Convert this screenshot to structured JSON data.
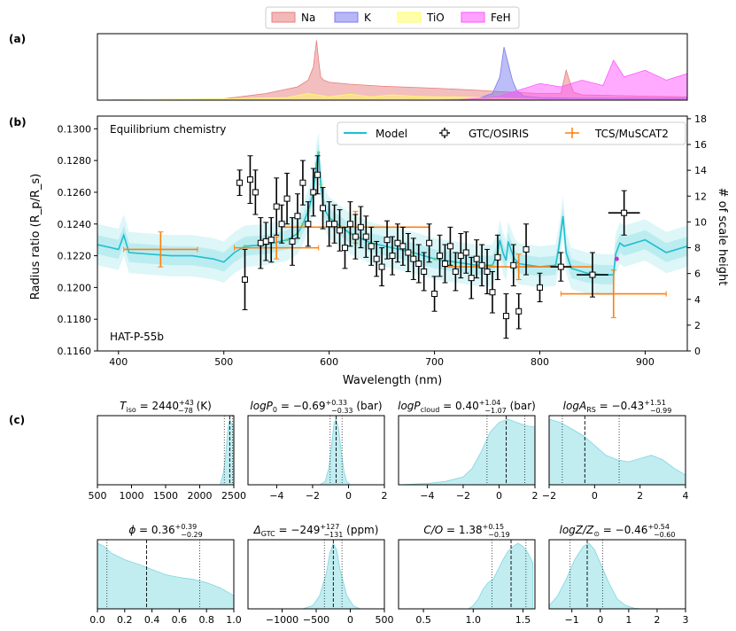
{
  "panel_labels": {
    "a": "(a)",
    "b": "(b)",
    "c": "(c)"
  },
  "colors": {
    "na": "#e87d7d",
    "k": "#7b7bf0",
    "tio": "#ffff66",
    "feh": "#ff55ff",
    "model": "#1fbfcf",
    "band": "#9fe4ea",
    "gtc": "#000000",
    "tcs": "#ff7f0e",
    "posterior": "#9fe4ea"
  },
  "chart_data": [
    {
      "id": "opacity",
      "type": "area",
      "legend": [
        {
          "key": "na",
          "label": "Na"
        },
        {
          "key": "k",
          "label": "K"
        },
        {
          "key": "tio",
          "label": "TiO"
        },
        {
          "key": "feh",
          "label": "FeH"
        }
      ],
      "xlim": [
        380,
        940
      ],
      "series": [
        {
          "key": "na",
          "x": [
            380,
            500,
            540,
            570,
            580,
            585,
            588,
            590,
            592,
            595,
            600,
            620,
            650,
            700,
            740,
            760,
            800,
            820,
            825,
            828,
            832,
            840,
            900,
            940
          ],
          "y": [
            0,
            0.02,
            0.1,
            0.2,
            0.3,
            0.5,
            0.9,
            0.6,
            0.35,
            0.3,
            0.27,
            0.24,
            0.21,
            0.18,
            0.15,
            0.13,
            0.1,
            0.1,
            0.45,
            0.3,
            0.12,
            0.08,
            0.06,
            0.05
          ]
        },
        {
          "key": "k",
          "x": [
            380,
            700,
            740,
            755,
            762,
            766,
            770,
            774,
            778,
            785,
            800,
            830,
            900,
            940
          ],
          "y": [
            0,
            0,
            0.02,
            0.1,
            0.35,
            0.8,
            0.55,
            0.3,
            0.15,
            0.06,
            0.04,
            0.03,
            0.03,
            0.03
          ]
        },
        {
          "key": "tio",
          "x": [
            380,
            500,
            560,
            580,
            600,
            620,
            640,
            660,
            680,
            700,
            720,
            740,
            760,
            780,
            800,
            940
          ],
          "y": [
            0,
            0.02,
            0.04,
            0.1,
            0.05,
            0.09,
            0.05,
            0.08,
            0.06,
            0.05,
            0.05,
            0.04,
            0.03,
            0.02,
            0.01,
            0
          ]
        },
        {
          "key": "feh",
          "x": [
            380,
            720,
            760,
            780,
            800,
            820,
            840,
            860,
            870,
            880,
            900,
            920,
            940
          ],
          "y": [
            0,
            0,
            0.05,
            0.15,
            0.25,
            0.2,
            0.3,
            0.22,
            0.6,
            0.35,
            0.45,
            0.3,
            0.4
          ]
        }
      ]
    },
    {
      "id": "transmission",
      "type": "line",
      "annotation": "Equilibrium chemistry",
      "target": "HAT-P-55b",
      "xlabel": "Wavelength (nm)",
      "ylabel": "Radius ratio (R_p/R_s)",
      "ylabel_right": "# of scale height",
      "xlim": [
        380,
        940
      ],
      "ylim": [
        0.116,
        0.1308
      ],
      "xticks": [
        400,
        500,
        600,
        700,
        800,
        900
      ],
      "yticks": [
        0.116,
        0.118,
        0.12,
        0.122,
        0.124,
        0.126,
        0.128,
        0.13
      ],
      "ytick_labels": [
        "0.1160",
        "0.1180",
        "0.1200",
        "0.1220",
        "0.1240",
        "0.1260",
        "0.1280",
        "0.1300"
      ],
      "right_ticks": [
        0,
        2,
        4,
        6,
        8,
        10,
        12,
        14,
        16,
        18
      ],
      "right_range": [
        0,
        18.2
      ],
      "legend": {
        "model": "Model",
        "gtc": "GTC/OSIRIS",
        "tcs": "TCS/MuSCAT2"
      },
      "model": {
        "x": [
          380,
          400,
          405,
          410,
          430,
          450,
          470,
          490,
          500,
          510,
          520,
          540,
          560,
          570,
          575,
          580,
          585,
          588,
          590,
          592,
          595,
          600,
          620,
          640,
          660,
          680,
          700,
          720,
          740,
          755,
          760,
          762,
          765,
          768,
          770,
          773,
          776,
          780,
          800,
          815,
          818,
          822,
          825,
          830,
          845,
          860,
          870,
          872,
          876,
          880,
          900,
          920,
          940
        ],
        "y": [
          0.1227,
          0.1224,
          0.1233,
          0.1222,
          0.1221,
          0.122,
          0.122,
          0.1218,
          0.1216,
          0.1222,
          0.1226,
          0.1227,
          0.123,
          0.1234,
          0.124,
          0.1248,
          0.126,
          0.1278,
          0.1285,
          0.1265,
          0.125,
          0.1244,
          0.1234,
          0.1228,
          0.1225,
          0.1222,
          0.1218,
          0.1216,
          0.1214,
          0.1214,
          0.1222,
          0.123,
          0.1222,
          0.1217,
          0.1229,
          0.1223,
          0.1218,
          0.1215,
          0.1213,
          0.1214,
          0.1225,
          0.1245,
          0.1222,
          0.1212,
          0.1209,
          0.1208,
          0.1208,
          0.1221,
          0.1228,
          0.1226,
          0.123,
          0.1222,
          0.1226
        ]
      },
      "gtc": [
        {
          "x": 515,
          "y": 0.1266,
          "e": 0.0008
        },
        {
          "x": 520,
          "y": 0.1205,
          "e": 0.0019
        },
        {
          "x": 525,
          "y": 0.1268,
          "e": 0.0015
        },
        {
          "x": 530,
          "y": 0.126,
          "e": 0.0014
        },
        {
          "x": 535,
          "y": 0.1228,
          "e": 0.0016
        },
        {
          "x": 540,
          "y": 0.1229,
          "e": 0.0012
        },
        {
          "x": 545,
          "y": 0.123,
          "e": 0.0014
        },
        {
          "x": 550,
          "y": 0.1251,
          "e": 0.0018
        },
        {
          "x": 555,
          "y": 0.124,
          "e": 0.0012
        },
        {
          "x": 560,
          "y": 0.1256,
          "e": 0.0016
        },
        {
          "x": 565,
          "y": 0.1229,
          "e": 0.0015
        },
        {
          "x": 570,
          "y": 0.1245,
          "e": 0.0014
        },
        {
          "x": 575,
          "y": 0.1266,
          "e": 0.0014
        },
        {
          "x": 580,
          "y": 0.124,
          "e": 0.0014
        },
        {
          "x": 585,
          "y": 0.126,
          "e": 0.0015
        },
        {
          "x": 589,
          "y": 0.1271,
          "e": 0.0012
        },
        {
          "x": 594,
          "y": 0.125,
          "e": 0.0013
        },
        {
          "x": 600,
          "y": 0.124,
          "e": 0.0014
        },
        {
          "x": 605,
          "y": 0.124,
          "e": 0.0012
        },
        {
          "x": 610,
          "y": 0.1236,
          "e": 0.0013
        },
        {
          "x": 615,
          "y": 0.1225,
          "e": 0.0013
        },
        {
          "x": 620,
          "y": 0.124,
          "e": 0.0014
        },
        {
          "x": 625,
          "y": 0.1232,
          "e": 0.0014
        },
        {
          "x": 630,
          "y": 0.1238,
          "e": 0.0013
        },
        {
          "x": 635,
          "y": 0.1232,
          "e": 0.0013
        },
        {
          "x": 640,
          "y": 0.1226,
          "e": 0.0012
        },
        {
          "x": 645,
          "y": 0.1218,
          "e": 0.0011
        },
        {
          "x": 650,
          "y": 0.1213,
          "e": 0.0012
        },
        {
          "x": 655,
          "y": 0.123,
          "e": 0.0012
        },
        {
          "x": 660,
          "y": 0.122,
          "e": 0.0012
        },
        {
          "x": 665,
          "y": 0.1228,
          "e": 0.0012
        },
        {
          "x": 670,
          "y": 0.1226,
          "e": 0.0012
        },
        {
          "x": 675,
          "y": 0.1222,
          "e": 0.0012
        },
        {
          "x": 680,
          "y": 0.1218,
          "e": 0.0013
        },
        {
          "x": 685,
          "y": 0.1215,
          "e": 0.0012
        },
        {
          "x": 690,
          "y": 0.121,
          "e": 0.0012
        },
        {
          "x": 695,
          "y": 0.1228,
          "e": 0.0012
        },
        {
          "x": 700,
          "y": 0.1196,
          "e": 0.0011
        },
        {
          "x": 705,
          "y": 0.122,
          "e": 0.0013
        },
        {
          "x": 710,
          "y": 0.1215,
          "e": 0.0012
        },
        {
          "x": 715,
          "y": 0.1226,
          "e": 0.0012
        },
        {
          "x": 720,
          "y": 0.121,
          "e": 0.0012
        },
        {
          "x": 725,
          "y": 0.122,
          "e": 0.0014
        },
        {
          "x": 730,
          "y": 0.1222,
          "e": 0.0013
        },
        {
          "x": 735,
          "y": 0.1206,
          "e": 0.0013
        },
        {
          "x": 740,
          "y": 0.1218,
          "e": 0.0012
        },
        {
          "x": 745,
          "y": 0.1214,
          "e": 0.0013
        },
        {
          "x": 750,
          "y": 0.121,
          "e": 0.0014
        },
        {
          "x": 755,
          "y": 0.1197,
          "e": 0.0013
        },
        {
          "x": 760,
          "y": 0.1219,
          "e": 0.0014
        },
        {
          "x": 768,
          "y": 0.1182,
          "e": 0.0014
        },
        {
          "x": 775,
          "y": 0.1214,
          "e": 0.0013
        },
        {
          "x": 780,
          "y": 0.1185,
          "e": 0.0011
        },
        {
          "x": 787,
          "y": 0.1224,
          "e": 0.0016
        },
        {
          "x": 800,
          "y": 0.12,
          "e": 0.0009
        },
        {
          "x": 820,
          "y": 0.1213,
          "e": 0.0009,
          "xe": 10
        },
        {
          "x": 850,
          "y": 0.1208,
          "e": 0.0014,
          "xe": 15
        },
        {
          "x": 880,
          "y": 0.1247,
          "e": 0.0014,
          "xe": 15
        }
      ],
      "tcs": [
        {
          "x": 440,
          "y": 0.1224,
          "e": 0.0011,
          "xe": 35
        },
        {
          "x": 550,
          "y": 0.1225,
          "e": 0.0007,
          "xe": 40
        },
        {
          "x": 625,
          "y": 0.1238,
          "e": 0.001,
          "xe": 70
        },
        {
          "x": 780,
          "y": 0.1213,
          "e": 0.0008,
          "xe": 70
        },
        {
          "x": 870,
          "y": 0.1196,
          "e": 0.0015,
          "xe": 50
        }
      ]
    },
    {
      "id": "posteriors",
      "type": "area",
      "panels": [
        {
          "title": "T_iso = 2440 +43 -78 (K)",
          "xlim": [
            500,
            2500
          ],
          "xticks": [
            500,
            1000,
            1500,
            2000,
            2500
          ],
          "tick_labels": [
            "500",
            "1000",
            "1500",
            "2000",
            "2500"
          ],
          "lines": [
            2360,
            2440,
            2483
          ],
          "x": [
            2300,
            2350,
            2380,
            2400,
            2420,
            2440,
            2460,
            2480,
            2500
          ],
          "y": [
            0,
            0.2,
            0.45,
            0.7,
            0.9,
            1.0,
            0.95,
            0.9,
            0.9
          ]
        },
        {
          "title": "logP_0 = -0.69 +0.33 -0.33 (bar)",
          "xlim": [
            -5.6,
            2
          ],
          "xticks": [
            -4,
            -2,
            0,
            2
          ],
          "tick_labels": [
            "−4",
            "−2",
            "0",
            "2"
          ],
          "lines": [
            -1.02,
            -0.69,
            -0.36
          ],
          "x": [
            -1.6,
            -1.3,
            -1.1,
            -0.9,
            -0.8,
            -0.69,
            -0.55,
            -0.4,
            -0.25,
            -0.1,
            0.1
          ],
          "y": [
            0,
            0.05,
            0.25,
            0.7,
            0.95,
            1.0,
            0.85,
            0.5,
            0.2,
            0.05,
            0
          ]
        },
        {
          "title": "logP_cloud = 0.40 +1.04 -1.07 (bar)",
          "xlim": [
            -5.6,
            2
          ],
          "xticks": [
            -4,
            -2,
            0,
            2
          ],
          "tick_labels": [
            "−4",
            "−2",
            "0",
            "2"
          ],
          "lines": [
            -0.67,
            0.4,
            1.44
          ],
          "x": [
            -5.6,
            -4,
            -3,
            -2,
            -1.5,
            -1,
            -0.5,
            0,
            0.5,
            1,
            1.5,
            2
          ],
          "y": [
            0,
            0.02,
            0.05,
            0.12,
            0.25,
            0.5,
            0.8,
            0.95,
            1.0,
            0.95,
            0.9,
            0.88
          ]
        },
        {
          "title": "logA_RS = -0.43 +1.51 -0.99",
          "xlim": [
            -2,
            4
          ],
          "xticks": [
            -2,
            0,
            2,
            4
          ],
          "tick_labels": [
            "−2",
            "0",
            "2",
            "4"
          ],
          "lines": [
            -1.42,
            -0.43,
            1.08
          ],
          "x": [
            -2,
            -1.5,
            -1,
            -0.5,
            0,
            0.5,
            1,
            1.5,
            2,
            2.5,
            3,
            3.5,
            4
          ],
          "y": [
            1.0,
            0.95,
            0.85,
            0.75,
            0.6,
            0.45,
            0.38,
            0.35,
            0.4,
            0.45,
            0.38,
            0.25,
            0.15
          ]
        },
        {
          "title": "phi = 0.36 +0.39 -0.29",
          "xlim": [
            0,
            1
          ],
          "xticks": [
            0,
            0.2,
            0.4,
            0.6,
            0.8,
            1.0
          ],
          "tick_labels": [
            "0.0",
            "0.2",
            "0.4",
            "0.6",
            "0.8",
            "1.0"
          ],
          "lines": [
            0.07,
            0.36,
            0.75
          ],
          "x": [
            0,
            0.05,
            0.1,
            0.2,
            0.3,
            0.4,
            0.5,
            0.6,
            0.7,
            0.8,
            0.9,
            1.0
          ],
          "y": [
            1.0,
            0.95,
            0.85,
            0.75,
            0.68,
            0.6,
            0.52,
            0.48,
            0.45,
            0.4,
            0.32,
            0.2
          ]
        },
        {
          "title": "Delta_GTC = -249 +127 -131 (ppm)",
          "xlim": [
            -1500,
            500
          ],
          "xticks": [
            -1000,
            -500,
            0,
            500
          ],
          "tick_labels": [
            "−1000",
            "−500",
            "0",
            "500"
          ],
          "lines": [
            -380,
            -249,
            -122
          ],
          "x": [
            -700,
            -550,
            -450,
            -350,
            -300,
            -249,
            -200,
            -150,
            -50,
            50,
            150
          ],
          "y": [
            0,
            0.05,
            0.2,
            0.55,
            0.85,
            1.0,
            0.9,
            0.6,
            0.2,
            0.04,
            0
          ]
        },
        {
          "title": "C/O = 1.38 +0.15 -0.19",
          "xlim": [
            0.25,
            1.62
          ],
          "xticks": [
            0.5,
            1.0,
            1.5
          ],
          "tick_labels": [
            "0.5",
            "1.0",
            "1.5"
          ],
          "lines": [
            1.19,
            1.38,
            1.53
          ],
          "x": [
            0.95,
            1.0,
            1.05,
            1.1,
            1.15,
            1.2,
            1.25,
            1.3,
            1.35,
            1.4,
            1.45,
            1.5,
            1.55,
            1.6
          ],
          "y": [
            0,
            0.05,
            0.15,
            0.3,
            0.4,
            0.45,
            0.6,
            0.75,
            0.88,
            0.95,
            1.0,
            0.95,
            0.85,
            0.7
          ]
        },
        {
          "title": "logZ/Z_sun = -0.46 +0.54 -0.60",
          "xlim": [
            -1.8,
            3
          ],
          "xticks": [
            -1,
            0,
            1,
            2,
            3
          ],
          "tick_labels": [
            "−1",
            "0",
            "1",
            "2",
            "3"
          ],
          "lines": [
            -1.06,
            -0.46,
            0.08
          ],
          "x": [
            -1.8,
            -1.5,
            -1.2,
            -0.9,
            -0.6,
            -0.4,
            -0.2,
            0,
            0.3,
            0.6,
            0.9,
            1.2,
            1.5
          ],
          "y": [
            0.05,
            0.2,
            0.45,
            0.75,
            0.95,
            1.0,
            0.9,
            0.7,
            0.4,
            0.15,
            0.05,
            0.01,
            0
          ]
        }
      ]
    }
  ]
}
